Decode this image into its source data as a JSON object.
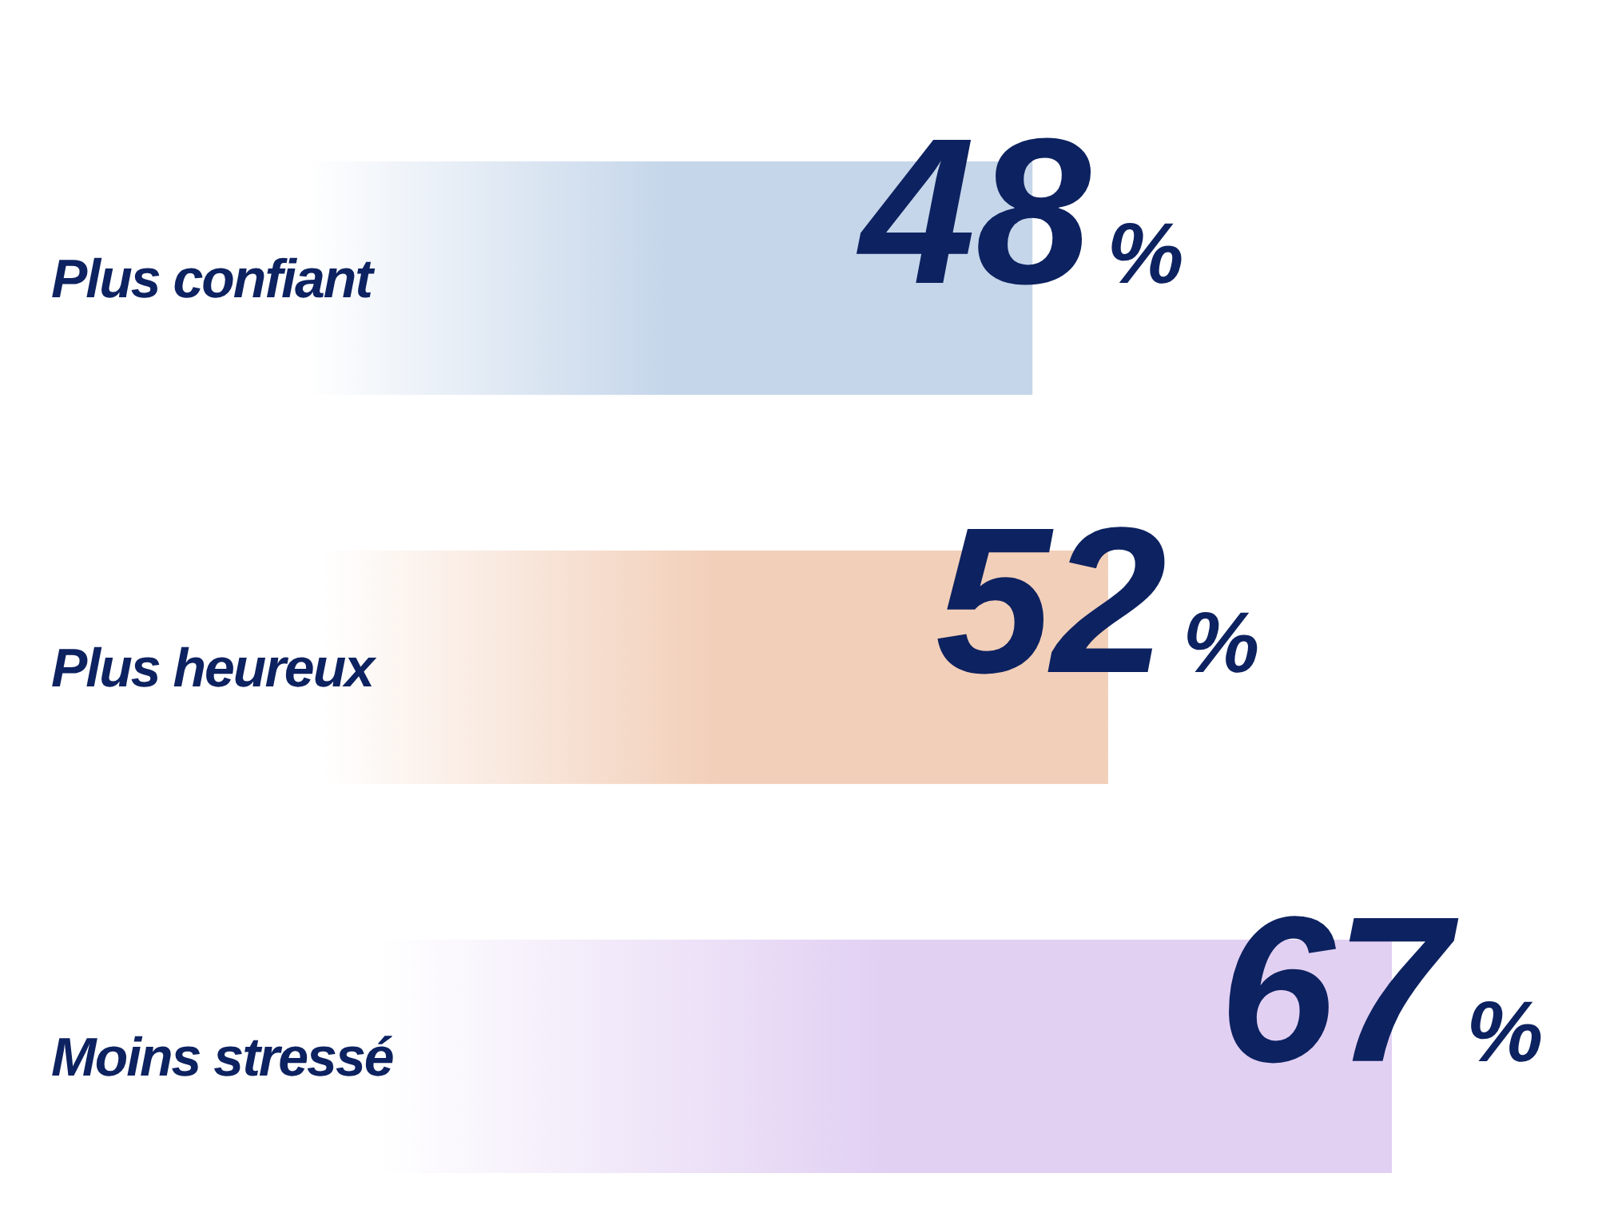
{
  "chart_data": {
    "type": "bar",
    "orientation": "horizontal",
    "categories": [
      "Plus confiant",
      "Plus heureux",
      "Moins stressé"
    ],
    "values": [
      48,
      52,
      67
    ],
    "colors": [
      "#c5d6ea",
      "#f2cfb9",
      "#e2d0f3"
    ],
    "value_labels": [
      "48%",
      "52%",
      "67%"
    ]
  }
}
